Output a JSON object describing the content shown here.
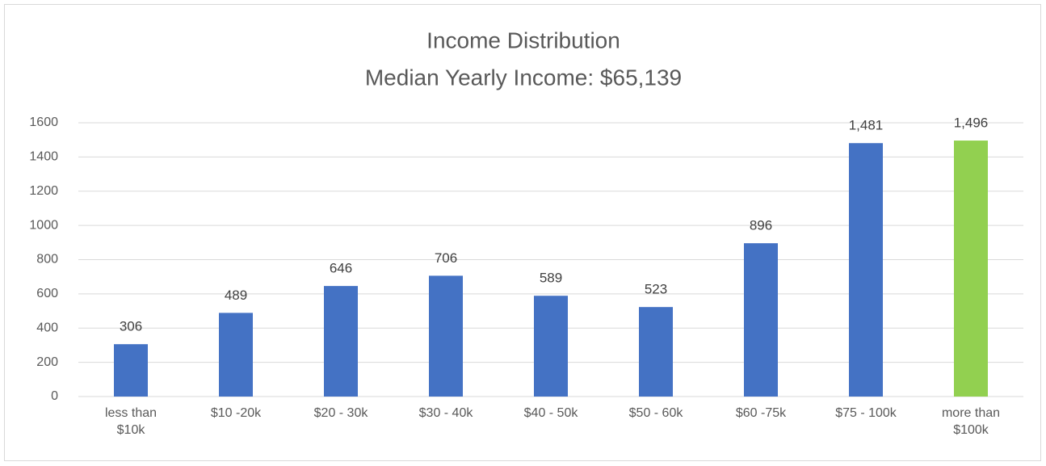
{
  "chart_data": {
    "type": "bar",
    "title": "Income Distribution",
    "subtitle": "Median Yearly Income:  $65,139",
    "categories": [
      "less than $10k",
      "$10 -20k",
      "$20 - 30k",
      "$30 - 40k",
      "$40 - 50k",
      "$50 - 60k",
      "$60 -75k",
      "$75 - 100k",
      "more than $100k"
    ],
    "values": [
      306,
      489,
      646,
      706,
      589,
      523,
      896,
      1481,
      1496
    ],
    "value_labels": [
      "306",
      "489",
      "646",
      "706",
      "589",
      "523",
      "896",
      "1,481",
      "1,496"
    ],
    "colors": [
      "#4472c4",
      "#4472c4",
      "#4472c4",
      "#4472c4",
      "#4472c4",
      "#4472c4",
      "#4472c4",
      "#4472c4",
      "#92d050"
    ],
    "ylim": [
      0,
      1600
    ],
    "yticks": [
      0,
      200,
      400,
      600,
      800,
      1000,
      1200,
      1400,
      1600
    ],
    "grid": true
  }
}
